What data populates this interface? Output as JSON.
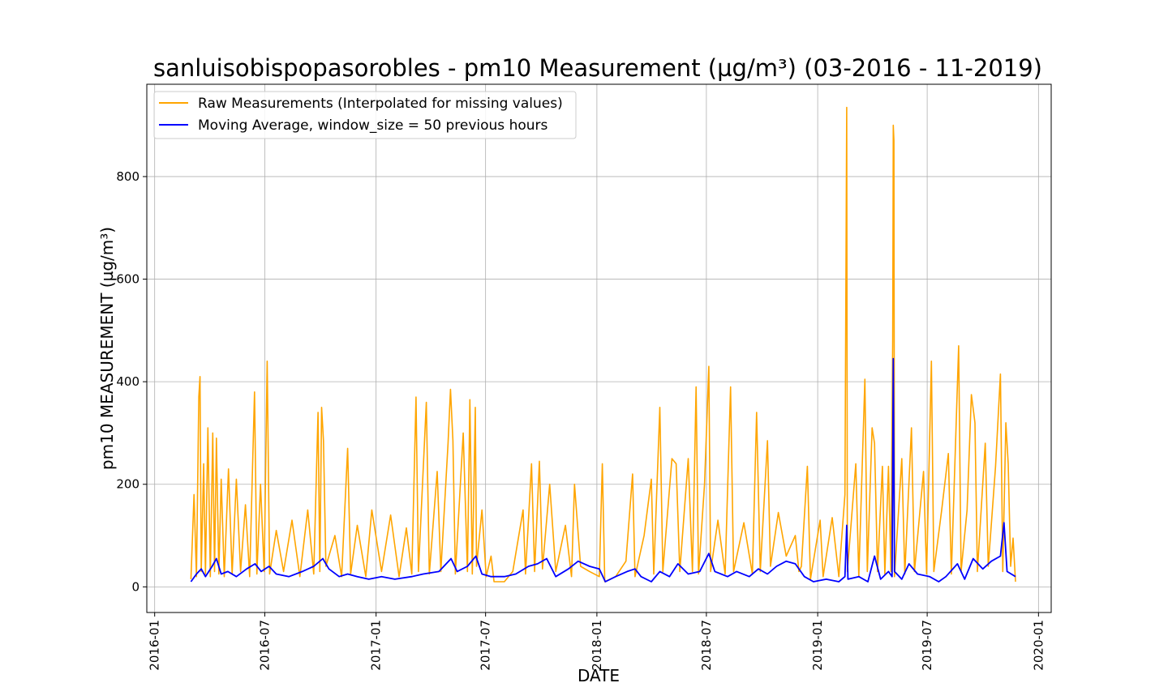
{
  "chart_data": {
    "type": "line",
    "title": "sanluisobispopasorobles - pm10 Measurement (µg/m³) (03-2016 - 11-2019)",
    "xlabel": "DATE",
    "ylabel": "pm10 MEASUREMENT (µg/m³)",
    "x_range": [
      "2015-12-19",
      "2020-01-22"
    ],
    "ylim": [
      -50,
      980
    ],
    "x_ticks": [
      "2016-01",
      "2016-07",
      "2017-01",
      "2017-07",
      "2018-01",
      "2018-07",
      "2019-01",
      "2019-07",
      "2020-01"
    ],
    "y_ticks": [
      0,
      200,
      400,
      600,
      800
    ],
    "grid": true,
    "legend_position": "upper left",
    "series": [
      {
        "name": "Raw Measurements (Interpolated for missing values)",
        "color": "#ffa500",
        "points": [
          [
            "2016-03-01",
            15
          ],
          [
            "2016-03-06",
            180
          ],
          [
            "2016-03-10",
            20
          ],
          [
            "2016-03-14",
            370
          ],
          [
            "2016-03-16",
            410
          ],
          [
            "2016-03-18",
            30
          ],
          [
            "2016-03-22",
            240
          ],
          [
            "2016-03-25",
            25
          ],
          [
            "2016-03-29",
            310
          ],
          [
            "2016-04-02",
            20
          ],
          [
            "2016-04-06",
            300
          ],
          [
            "2016-04-09",
            30
          ],
          [
            "2016-04-12",
            290
          ],
          [
            "2016-04-16",
            25
          ],
          [
            "2016-04-20",
            210
          ],
          [
            "2016-04-25",
            20
          ],
          [
            "2016-05-02",
            230
          ],
          [
            "2016-05-08",
            25
          ],
          [
            "2016-05-15",
            210
          ],
          [
            "2016-05-22",
            30
          ],
          [
            "2016-05-30",
            160
          ],
          [
            "2016-06-06",
            20
          ],
          [
            "2016-06-14",
            380
          ],
          [
            "2016-06-18",
            25
          ],
          [
            "2016-06-24",
            200
          ],
          [
            "2016-06-30",
            30
          ],
          [
            "2016-07-05",
            440
          ],
          [
            "2016-07-09",
            25
          ],
          [
            "2016-07-20",
            110
          ],
          [
            "2016-08-01",
            30
          ],
          [
            "2016-08-15",
            130
          ],
          [
            "2016-08-28",
            20
          ],
          [
            "2016-09-10",
            150
          ],
          [
            "2016-09-20",
            25
          ],
          [
            "2016-09-27",
            340
          ],
          [
            "2016-09-30",
            30
          ],
          [
            "2016-10-03",
            350
          ],
          [
            "2016-10-06",
            285
          ],
          [
            "2016-10-10",
            40
          ],
          [
            "2016-10-25",
            100
          ],
          [
            "2016-11-05",
            20
          ],
          [
            "2016-11-15",
            270
          ],
          [
            "2016-11-20",
            25
          ],
          [
            "2016-12-01",
            120
          ],
          [
            "2016-12-15",
            20
          ],
          [
            "2016-12-25",
            150
          ],
          [
            "2017-01-10",
            30
          ],
          [
            "2017-01-25",
            140
          ],
          [
            "2017-02-08",
            20
          ],
          [
            "2017-02-20",
            115
          ],
          [
            "2017-03-01",
            25
          ],
          [
            "2017-03-08",
            370
          ],
          [
            "2017-03-12",
            30
          ],
          [
            "2017-03-25",
            360
          ],
          [
            "2017-03-30",
            25
          ],
          [
            "2017-04-12",
            225
          ],
          [
            "2017-04-18",
            30
          ],
          [
            "2017-04-30",
            280
          ],
          [
            "2017-05-04",
            385
          ],
          [
            "2017-05-08",
            285
          ],
          [
            "2017-05-12",
            25
          ],
          [
            "2017-05-25",
            300
          ],
          [
            "2017-06-01",
            30
          ],
          [
            "2017-06-05",
            365
          ],
          [
            "2017-06-09",
            25
          ],
          [
            "2017-06-14",
            350
          ],
          [
            "2017-06-16",
            40
          ],
          [
            "2017-06-25",
            150
          ],
          [
            "2017-07-02",
            20
          ],
          [
            "2017-07-10",
            60
          ],
          [
            "2017-07-15",
            10
          ],
          [
            "2017-08-01",
            10
          ],
          [
            "2017-08-15",
            30
          ],
          [
            "2017-09-01",
            150
          ],
          [
            "2017-09-05",
            25
          ],
          [
            "2017-09-15",
            240
          ],
          [
            "2017-09-20",
            30
          ],
          [
            "2017-09-28",
            245
          ],
          [
            "2017-10-03",
            35
          ],
          [
            "2017-10-15",
            200
          ],
          [
            "2017-10-25",
            30
          ],
          [
            "2017-11-10",
            120
          ],
          [
            "2017-11-20",
            20
          ],
          [
            "2017-11-25",
            200
          ],
          [
            "2017-12-05",
            40
          ],
          [
            "2017-12-20",
            30
          ],
          [
            "2018-01-05",
            20
          ],
          [
            "2018-01-10",
            240
          ],
          [
            "2018-01-14",
            10
          ],
          [
            "2018-02-01",
            20
          ],
          [
            "2018-02-18",
            50
          ],
          [
            "2018-03-01",
            220
          ],
          [
            "2018-03-05",
            20
          ],
          [
            "2018-03-20",
            100
          ],
          [
            "2018-04-01",
            210
          ],
          [
            "2018-04-05",
            25
          ],
          [
            "2018-04-15",
            350
          ],
          [
            "2018-04-20",
            30
          ],
          [
            "2018-05-05",
            250
          ],
          [
            "2018-05-12",
            240
          ],
          [
            "2018-05-18",
            30
          ],
          [
            "2018-06-01",
            250
          ],
          [
            "2018-06-08",
            30
          ],
          [
            "2018-06-14",
            390
          ],
          [
            "2018-06-18",
            25
          ],
          [
            "2018-06-28",
            200
          ],
          [
            "2018-07-05",
            430
          ],
          [
            "2018-07-08",
            30
          ],
          [
            "2018-07-20",
            130
          ],
          [
            "2018-08-01",
            25
          ],
          [
            "2018-08-10",
            390
          ],
          [
            "2018-08-15",
            30
          ],
          [
            "2018-09-01",
            125
          ],
          [
            "2018-09-15",
            25
          ],
          [
            "2018-09-22",
            340
          ],
          [
            "2018-09-28",
            30
          ],
          [
            "2018-10-10",
            285
          ],
          [
            "2018-10-15",
            40
          ],
          [
            "2018-10-28",
            145
          ],
          [
            "2018-11-10",
            60
          ],
          [
            "2018-11-25",
            100
          ],
          [
            "2018-12-01",
            30
          ],
          [
            "2018-12-05",
            40
          ],
          [
            "2018-12-15",
            235
          ],
          [
            "2018-12-20",
            15
          ],
          [
            "2019-01-05",
            130
          ],
          [
            "2019-01-10",
            20
          ],
          [
            "2019-01-25",
            135
          ],
          [
            "2019-02-05",
            20
          ],
          [
            "2019-02-15",
            180
          ],
          [
            "2019-02-18",
            935
          ],
          [
            "2019-02-19",
            30
          ],
          [
            "2019-03-05",
            240
          ],
          [
            "2019-03-10",
            20
          ],
          [
            "2019-03-20",
            405
          ],
          [
            "2019-03-24",
            30
          ],
          [
            "2019-04-01",
            310
          ],
          [
            "2019-04-05",
            280
          ],
          [
            "2019-04-10",
            30
          ],
          [
            "2019-04-18",
            235
          ],
          [
            "2019-04-22",
            25
          ],
          [
            "2019-04-28",
            235
          ],
          [
            "2019-05-02",
            30
          ],
          [
            "2019-05-05",
            480
          ],
          [
            "2019-05-06",
            900
          ],
          [
            "2019-05-07",
            870
          ],
          [
            "2019-05-08",
            20
          ],
          [
            "2019-05-20",
            250
          ],
          [
            "2019-05-25",
            25
          ],
          [
            "2019-06-05",
            310
          ],
          [
            "2019-06-10",
            30
          ],
          [
            "2019-06-25",
            225
          ],
          [
            "2019-06-30",
            25
          ],
          [
            "2019-07-08",
            440
          ],
          [
            "2019-07-12",
            30
          ],
          [
            "2019-07-25",
            150
          ],
          [
            "2019-08-05",
            260
          ],
          [
            "2019-08-10",
            25
          ],
          [
            "2019-08-22",
            470
          ],
          [
            "2019-08-26",
            30
          ],
          [
            "2019-09-05",
            150
          ],
          [
            "2019-09-12",
            375
          ],
          [
            "2019-09-18",
            320
          ],
          [
            "2019-09-22",
            30
          ],
          [
            "2019-10-05",
            280
          ],
          [
            "2019-10-10",
            40
          ],
          [
            "2019-10-22",
            235
          ],
          [
            "2019-10-30",
            415
          ],
          [
            "2019-11-03",
            30
          ],
          [
            "2019-11-08",
            320
          ],
          [
            "2019-11-12",
            240
          ],
          [
            "2019-11-16",
            40
          ],
          [
            "2019-11-20",
            95
          ],
          [
            "2019-11-24",
            10
          ]
        ]
      },
      {
        "name": "Moving Average, window_size = 50 previous hours",
        "color": "#0000ff",
        "points": [
          [
            "2016-03-01",
            10
          ],
          [
            "2016-03-10",
            25
          ],
          [
            "2016-03-18",
            35
          ],
          [
            "2016-03-25",
            20
          ],
          [
            "2016-04-05",
            40
          ],
          [
            "2016-04-12",
            55
          ],
          [
            "2016-04-20",
            25
          ],
          [
            "2016-05-01",
            30
          ],
          [
            "2016-05-15",
            20
          ],
          [
            "2016-06-01",
            35
          ],
          [
            "2016-06-15",
            45
          ],
          [
            "2016-06-25",
            30
          ],
          [
            "2016-07-08",
            40
          ],
          [
            "2016-07-20",
            25
          ],
          [
            "2016-08-10",
            20
          ],
          [
            "2016-09-01",
            30
          ],
          [
            "2016-09-20",
            40
          ],
          [
            "2016-10-05",
            55
          ],
          [
            "2016-10-15",
            35
          ],
          [
            "2016-11-01",
            20
          ],
          [
            "2016-11-15",
            25
          ],
          [
            "2016-12-01",
            20
          ],
          [
            "2016-12-20",
            15
          ],
          [
            "2017-01-10",
            20
          ],
          [
            "2017-02-01",
            15
          ],
          [
            "2017-03-01",
            20
          ],
          [
            "2017-03-20",
            25
          ],
          [
            "2017-04-15",
            30
          ],
          [
            "2017-05-05",
            55
          ],
          [
            "2017-05-15",
            30
          ],
          [
            "2017-06-01",
            40
          ],
          [
            "2017-06-15",
            60
          ],
          [
            "2017-06-25",
            25
          ],
          [
            "2017-07-10",
            20
          ],
          [
            "2017-08-01",
            20
          ],
          [
            "2017-08-20",
            25
          ],
          [
            "2017-09-10",
            40
          ],
          [
            "2017-09-25",
            45
          ],
          [
            "2017-10-10",
            55
          ],
          [
            "2017-10-25",
            20
          ],
          [
            "2017-11-15",
            35
          ],
          [
            "2017-12-01",
            50
          ],
          [
            "2017-12-20",
            40
          ],
          [
            "2018-01-05",
            35
          ],
          [
            "2018-01-15",
            10
          ],
          [
            "2018-02-01",
            20
          ],
          [
            "2018-02-20",
            30
          ],
          [
            "2018-03-05",
            35
          ],
          [
            "2018-03-15",
            20
          ],
          [
            "2018-04-01",
            10
          ],
          [
            "2018-04-15",
            30
          ],
          [
            "2018-05-01",
            20
          ],
          [
            "2018-05-15",
            45
          ],
          [
            "2018-06-01",
            25
          ],
          [
            "2018-06-20",
            30
          ],
          [
            "2018-07-05",
            65
          ],
          [
            "2018-07-15",
            30
          ],
          [
            "2018-08-05",
            20
          ],
          [
            "2018-08-20",
            30
          ],
          [
            "2018-09-10",
            20
          ],
          [
            "2018-09-25",
            35
          ],
          [
            "2018-10-10",
            25
          ],
          [
            "2018-10-25",
            40
          ],
          [
            "2018-11-10",
            50
          ],
          [
            "2018-11-25",
            45
          ],
          [
            "2018-12-10",
            20
          ],
          [
            "2018-12-25",
            10
          ],
          [
            "2019-01-15",
            15
          ],
          [
            "2019-02-05",
            10
          ],
          [
            "2019-02-15",
            20
          ],
          [
            "2019-02-18",
            120
          ],
          [
            "2019-02-20",
            15
          ],
          [
            "2019-03-10",
            20
          ],
          [
            "2019-03-25",
            10
          ],
          [
            "2019-04-05",
            60
          ],
          [
            "2019-04-15",
            15
          ],
          [
            "2019-04-28",
            30
          ],
          [
            "2019-05-04",
            20
          ],
          [
            "2019-05-06",
            445
          ],
          [
            "2019-05-08",
            30
          ],
          [
            "2019-05-20",
            15
          ],
          [
            "2019-06-01",
            45
          ],
          [
            "2019-06-15",
            25
          ],
          [
            "2019-07-05",
            20
          ],
          [
            "2019-07-20",
            10
          ],
          [
            "2019-08-01",
            20
          ],
          [
            "2019-08-20",
            45
          ],
          [
            "2019-09-01",
            15
          ],
          [
            "2019-09-15",
            55
          ],
          [
            "2019-10-01",
            35
          ],
          [
            "2019-10-15",
            50
          ],
          [
            "2019-10-30",
            60
          ],
          [
            "2019-11-05",
            125
          ],
          [
            "2019-11-10",
            30
          ],
          [
            "2019-11-24",
            20
          ]
        ]
      }
    ]
  }
}
